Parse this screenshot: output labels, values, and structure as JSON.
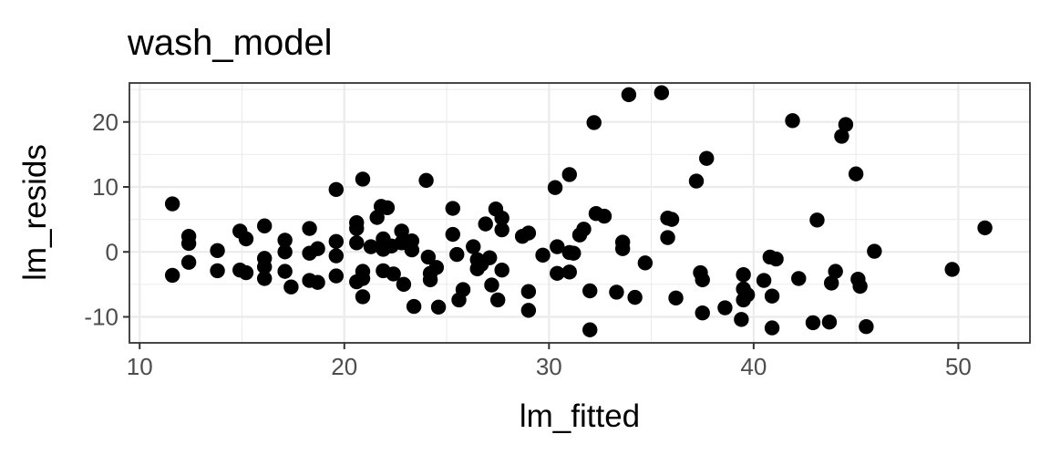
{
  "chart_data": {
    "type": "scatter",
    "title": "wash_model",
    "xlabel": "lm_fitted",
    "ylabel": "lm_resids",
    "xlim": [
      9.5,
      53.5
    ],
    "ylim": [
      -14,
      26
    ],
    "x_ticks": [
      10,
      20,
      30,
      40,
      50
    ],
    "x_tick_labels": [
      "10",
      "20",
      "30",
      "40",
      "50"
    ],
    "y_ticks": [
      -10,
      0,
      10,
      20
    ],
    "y_tick_labels": [
      "-10",
      "0",
      "10",
      "20"
    ],
    "x_minor": [
      15,
      25,
      35,
      45
    ],
    "y_minor": [
      -5,
      5,
      15,
      25
    ],
    "grid": true,
    "legend": "none",
    "point_color": "#000000",
    "points": [
      [
        11.6,
        7.4
      ],
      [
        11.6,
        -3.6
      ],
      [
        12.4,
        2.4
      ],
      [
        12.4,
        1.3
      ],
      [
        12.4,
        -1.6
      ],
      [
        13.8,
        0.2
      ],
      [
        13.8,
        -2.9
      ],
      [
        14.9,
        3.2
      ],
      [
        14.9,
        -2.8
      ],
      [
        15.2,
        2.0
      ],
      [
        15.2,
        -3.2
      ],
      [
        16.1,
        4.0
      ],
      [
        16.1,
        -1.0
      ],
      [
        16.1,
        -2.3
      ],
      [
        16.1,
        -4.1
      ],
      [
        17.1,
        1.8
      ],
      [
        17.1,
        0.0
      ],
      [
        17.1,
        -3.0
      ],
      [
        17.4,
        -5.4
      ],
      [
        18.3,
        3.6
      ],
      [
        18.3,
        -0.2
      ],
      [
        18.3,
        -4.4
      ],
      [
        18.7,
        0.5
      ],
      [
        18.7,
        -4.7
      ],
      [
        19.6,
        9.6
      ],
      [
        19.6,
        1.6
      ],
      [
        19.6,
        -0.6
      ],
      [
        19.6,
        -3.7
      ],
      [
        20.6,
        4.5
      ],
      [
        20.6,
        3.6
      ],
      [
        20.6,
        1.4
      ],
      [
        20.6,
        -4.6
      ],
      [
        20.9,
        11.2
      ],
      [
        20.9,
        -3.0
      ],
      [
        20.9,
        -4.1
      ],
      [
        20.9,
        -6.9
      ],
      [
        21.3,
        0.8
      ],
      [
        21.6,
        5.3
      ],
      [
        21.8,
        7.0
      ],
      [
        21.9,
        2.0
      ],
      [
        21.9,
        0.4
      ],
      [
        21.9,
        -2.9
      ],
      [
        22.1,
        6.8
      ],
      [
        22.3,
        0.9
      ],
      [
        22.4,
        -3.4
      ],
      [
        22.8,
        3.2
      ],
      [
        22.8,
        1.4
      ],
      [
        22.9,
        -5.0
      ],
      [
        23.3,
        1.7
      ],
      [
        23.3,
        0.3
      ],
      [
        23.4,
        -8.4
      ],
      [
        24.0,
        11.0
      ],
      [
        24.1,
        -0.8
      ],
      [
        24.2,
        -3.3
      ],
      [
        24.2,
        -4.3
      ],
      [
        24.5,
        -2.4
      ],
      [
        24.6,
        -8.5
      ],
      [
        25.3,
        6.7
      ],
      [
        25.3,
        2.7
      ],
      [
        25.5,
        -0.4
      ],
      [
        25.6,
        -7.4
      ],
      [
        25.8,
        -5.8
      ],
      [
        26.3,
        0.8
      ],
      [
        26.5,
        -1.2
      ],
      [
        26.5,
        -2.6
      ],
      [
        26.7,
        -1.9
      ],
      [
        26.9,
        4.3
      ],
      [
        27.1,
        -0.9
      ],
      [
        27.2,
        -5.1
      ],
      [
        27.4,
        6.6
      ],
      [
        27.5,
        -7.4
      ],
      [
        27.7,
        5.2
      ],
      [
        27.7,
        3.4
      ],
      [
        27.7,
        -2.8
      ],
      [
        28.7,
        2.4
      ],
      [
        29.0,
        2.9
      ],
      [
        29.0,
        -6.1
      ],
      [
        29.0,
        -9.0
      ],
      [
        29.7,
        -0.5
      ],
      [
        30.3,
        9.9
      ],
      [
        30.4,
        0.8
      ],
      [
        30.4,
        -3.3
      ],
      [
        31.0,
        11.9
      ],
      [
        31.0,
        -0.1
      ],
      [
        31.0,
        -3.1
      ],
      [
        31.2,
        -0.2
      ],
      [
        31.5,
        2.6
      ],
      [
        31.7,
        3.5
      ],
      [
        32.0,
        -6.0
      ],
      [
        32.0,
        -12.0
      ],
      [
        32.2,
        19.9
      ],
      [
        32.3,
        5.9
      ],
      [
        32.7,
        5.5
      ],
      [
        33.3,
        -6.2
      ],
      [
        33.6,
        1.5
      ],
      [
        33.6,
        0.5
      ],
      [
        33.9,
        24.2
      ],
      [
        34.2,
        -7.0
      ],
      [
        34.7,
        -1.7
      ],
      [
        35.5,
        24.5
      ],
      [
        35.8,
        5.2
      ],
      [
        35.8,
        2.2
      ],
      [
        36.0,
        5.0
      ],
      [
        36.2,
        -7.1
      ],
      [
        37.2,
        10.9
      ],
      [
        37.4,
        -3.2
      ],
      [
        37.5,
        -4.3
      ],
      [
        37.5,
        -9.4
      ],
      [
        37.7,
        14.4
      ],
      [
        38.6,
        -8.6
      ],
      [
        39.4,
        -10.4
      ],
      [
        39.5,
        -3.5
      ],
      [
        39.5,
        -5.7
      ],
      [
        39.5,
        -7.4
      ],
      [
        39.7,
        -6.6
      ],
      [
        40.5,
        -4.4
      ],
      [
        40.8,
        -0.8
      ],
      [
        40.9,
        -6.8
      ],
      [
        40.9,
        -11.7
      ],
      [
        41.1,
        -1.1
      ],
      [
        41.9,
        20.2
      ],
      [
        42.2,
        -4.1
      ],
      [
        42.9,
        -10.9
      ],
      [
        43.1,
        4.9
      ],
      [
        43.7,
        -10.8
      ],
      [
        43.8,
        -4.8
      ],
      [
        44.0,
        -3.0
      ],
      [
        44.3,
        17.8
      ],
      [
        44.5,
        19.6
      ],
      [
        45.0,
        12.0
      ],
      [
        45.1,
        -4.2
      ],
      [
        45.2,
        -5.3
      ],
      [
        45.5,
        -11.5
      ],
      [
        45.9,
        0.1
      ],
      [
        49.7,
        -2.7
      ],
      [
        51.3,
        3.7
      ]
    ]
  }
}
